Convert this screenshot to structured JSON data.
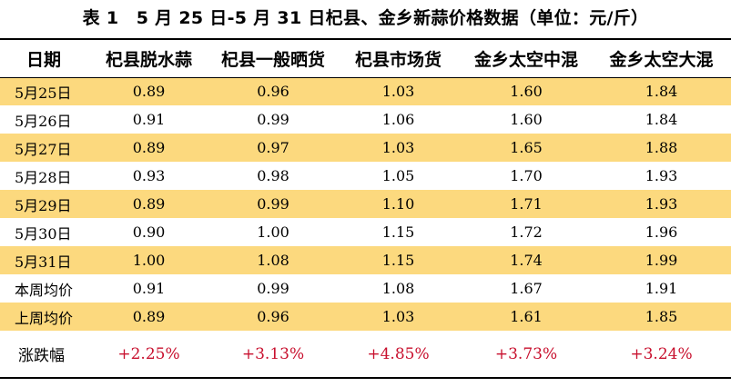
{
  "title": "表 1　5 月 25 日-5 月 31 日杞县、金乡新蒜价格数据（单位：元/斤）",
  "table": {
    "headers": [
      "日期",
      "杞县脱水蒜",
      "杞县一般晒货",
      "杞县市场货",
      "金乡太空中混",
      "金乡太空大混"
    ],
    "rows": [
      {
        "label": "5月25日",
        "values": [
          "0.89",
          "0.96",
          "1.03",
          "1.60",
          "1.84"
        ],
        "highlight": true
      },
      {
        "label": "5月26日",
        "values": [
          "0.91",
          "0.99",
          "1.06",
          "1.60",
          "1.84"
        ],
        "highlight": false
      },
      {
        "label": "5月27日",
        "values": [
          "0.89",
          "0.97",
          "1.03",
          "1.65",
          "1.88"
        ],
        "highlight": true
      },
      {
        "label": "5月28日",
        "values": [
          "0.93",
          "0.98",
          "1.05",
          "1.70",
          "1.93"
        ],
        "highlight": false
      },
      {
        "label": "5月29日",
        "values": [
          "0.89",
          "0.99",
          "1.10",
          "1.71",
          "1.93"
        ],
        "highlight": true
      },
      {
        "label": "5月30日",
        "values": [
          "0.90",
          "1.00",
          "1.15",
          "1.72",
          "1.96"
        ],
        "highlight": false
      },
      {
        "label": "5月31日",
        "values": [
          "1.00",
          "1.08",
          "1.15",
          "1.74",
          "1.99"
        ],
        "highlight": true
      },
      {
        "label": "本周均价",
        "values": [
          "0.91",
          "0.99",
          "1.08",
          "1.67",
          "1.91"
        ],
        "highlight": false
      },
      {
        "label": "上周均价",
        "values": [
          "0.89",
          "0.96",
          "1.03",
          "1.61",
          "1.85"
        ],
        "highlight": true
      }
    ],
    "change_row": {
      "label": "涨跌幅",
      "values": [
        "+2.25%",
        "+3.13%",
        "+4.85%",
        "+3.73%",
        "+3.24%"
      ]
    }
  },
  "colors": {
    "highlight_row": "#fcd97e",
    "positive_change": "#c8102e",
    "rule": "#000000"
  }
}
